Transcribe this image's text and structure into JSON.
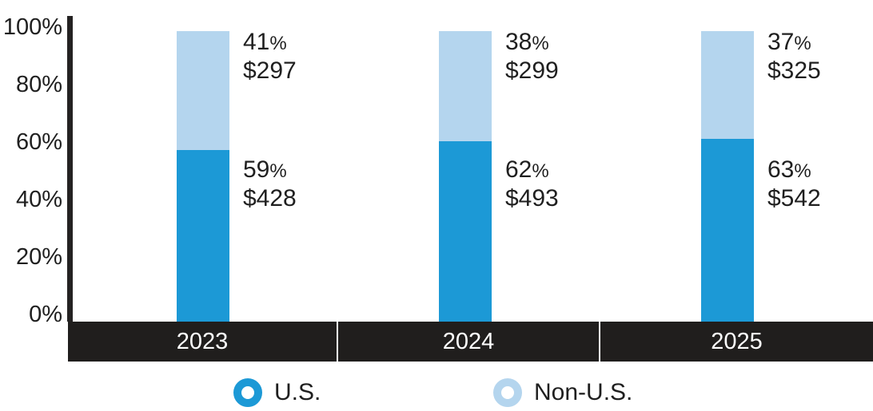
{
  "chart_data": {
    "type": "bar",
    "variant": "stacked-percent-column",
    "title": "",
    "categories": [
      "2023",
      "2024",
      "2025"
    ],
    "series": [
      {
        "name": "U.S.",
        "color": "#1c99d6",
        "position": "bottom",
        "percent": [
          59,
          62,
          63
        ],
        "dollar_values": [
          428,
          493,
          542
        ]
      },
      {
        "name": "Non-U.S.",
        "color": "#b4d5ee",
        "position": "top",
        "percent": [
          41,
          38,
          37
        ],
        "dollar_values": [
          297,
          299,
          325
        ]
      }
    ],
    "data_labels": [
      {
        "category": "2023",
        "top": "41% $297",
        "bottom": "59% $428"
      },
      {
        "category": "2024",
        "top": "38% $299",
        "bottom": "62% $493"
      },
      {
        "category": "2025",
        "top": "37% $325",
        "bottom": "63% $542"
      }
    ],
    "currency_prefix": "$",
    "percent_suffix": "%",
    "y_axis": {
      "tick_labels": [
        "100%",
        "80%",
        "60%",
        "40%",
        "20%",
        "0%"
      ],
      "min": 0,
      "max": 100,
      "grid": false
    },
    "x_axis": {
      "style": "black-band",
      "labels": [
        "2023",
        "2024",
        "2025"
      ]
    },
    "legend": {
      "position": "bottom",
      "marker_style": "ring",
      "items": [
        {
          "label": "U.S.",
          "color": "#1c99d6"
        },
        {
          "label": "Non-U.S.",
          "color": "#b4d5ee"
        }
      ]
    }
  },
  "colors": {
    "us_blue": "#1c99d6",
    "non_us_blue": "#b4d5ee",
    "axis_band": "#201e1d",
    "axis_line": "#242222",
    "label_text": "#1f1f1f",
    "year_text": "#ffffff",
    "background": "#ffffff"
  }
}
